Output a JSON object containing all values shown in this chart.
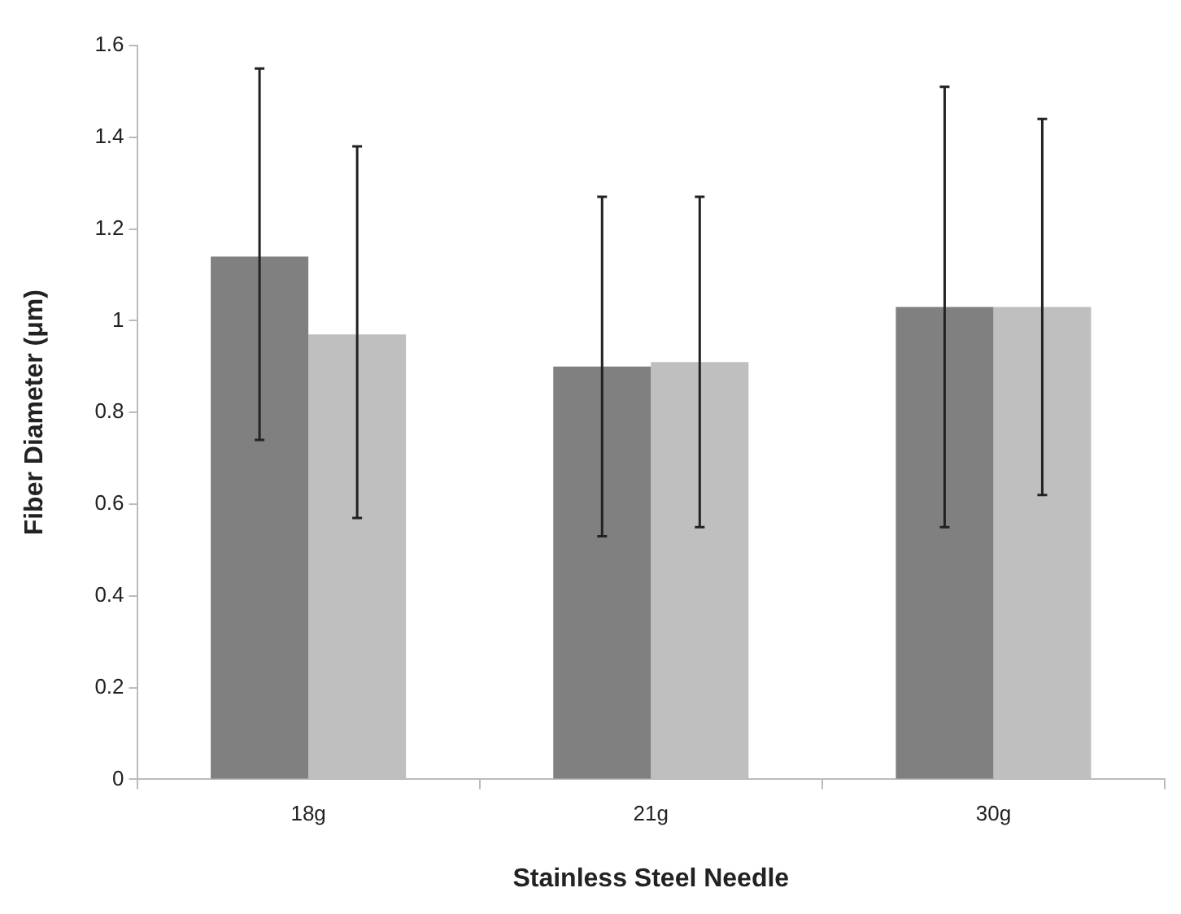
{
  "chart_data": {
    "type": "bar",
    "xlabel": "Stainless Steel Needle",
    "ylabel": "Fiber Diameter (μm)",
    "categories": [
      "18g",
      "21g",
      "30g"
    ],
    "series": [
      {
        "color": "#808080",
        "values": [
          1.14,
          0.9,
          1.03
        ],
        "errors": [
          [
            0.74,
            1.55
          ],
          [
            0.53,
            1.27
          ],
          [
            0.55,
            1.51
          ]
        ]
      },
      {
        "color": "#bfbfbf",
        "values": [
          0.97,
          0.91,
          1.03
        ],
        "errors": [
          [
            0.57,
            1.38
          ],
          [
            0.55,
            1.27
          ],
          [
            0.62,
            1.44
          ]
        ]
      }
    ],
    "ylim": [
      0,
      1.6
    ],
    "yticks": [
      0,
      0.2,
      0.4,
      0.6,
      0.8,
      1,
      1.2,
      1.4,
      1.6
    ],
    "grid": false,
    "legend": false
  }
}
